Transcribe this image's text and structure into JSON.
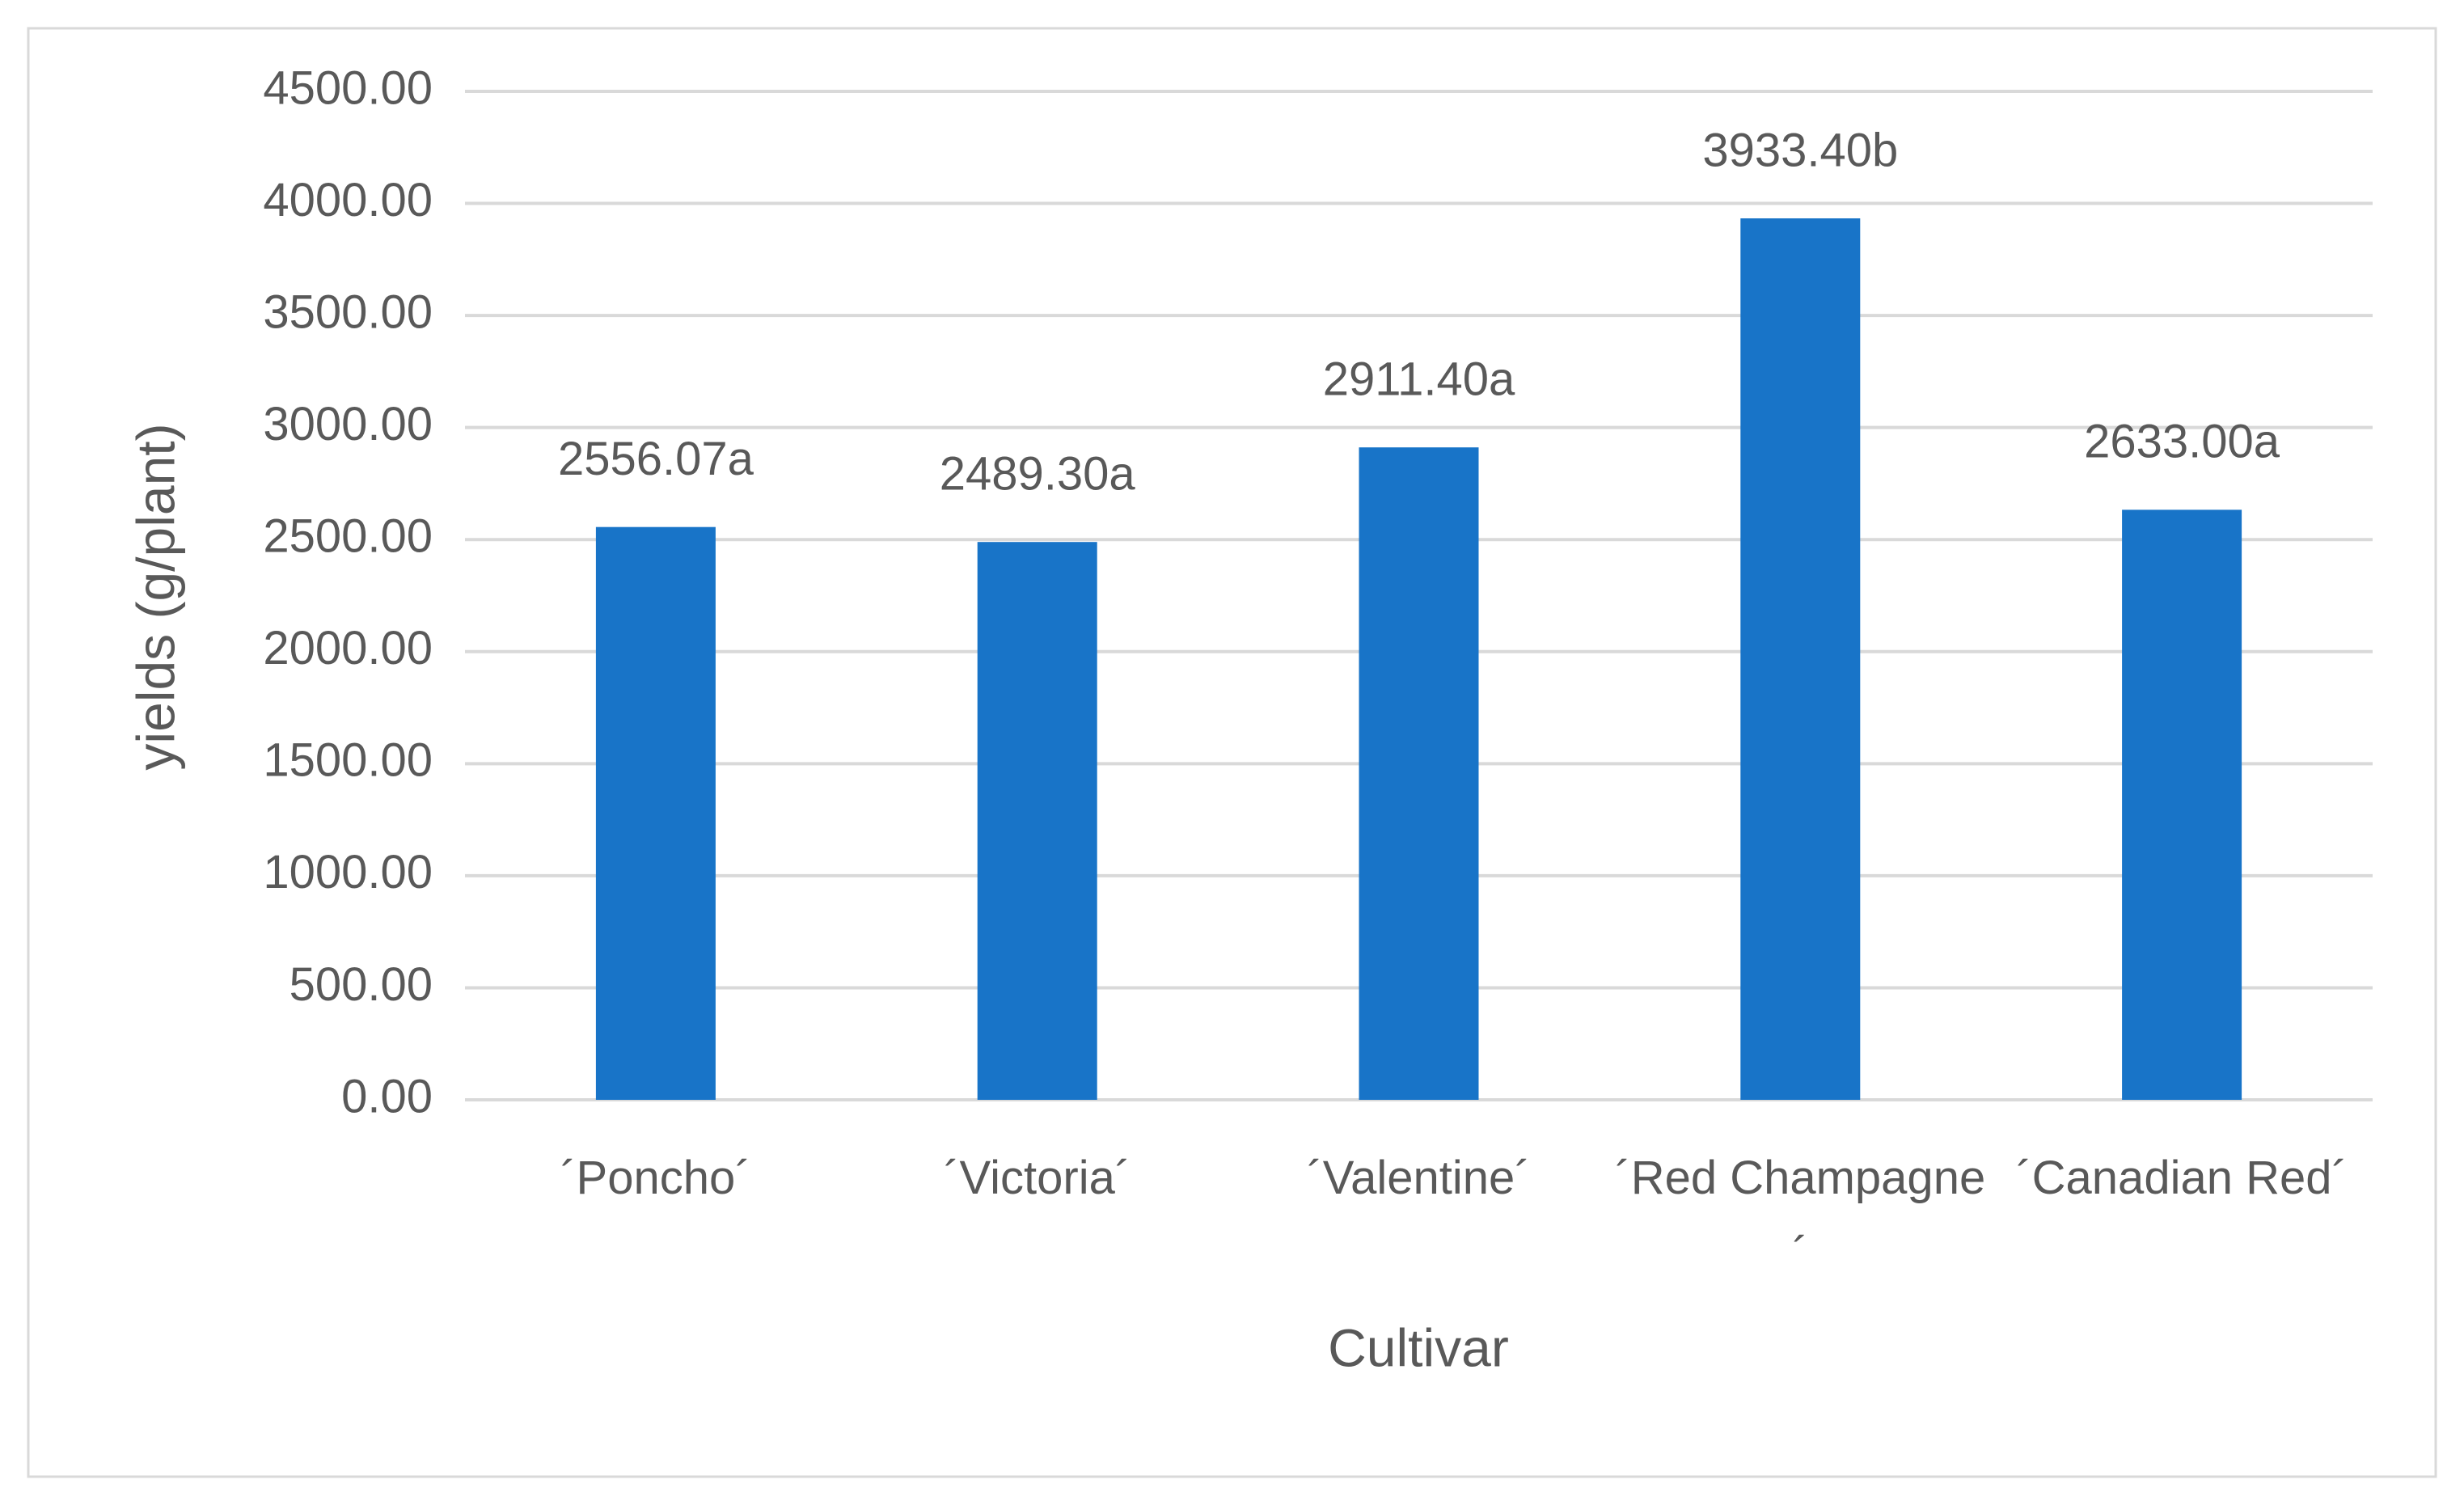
{
  "chart_data": {
    "type": "bar",
    "x_label": "Cultivar",
    "y_label": "yields (g/plant)",
    "categories": [
      "´Poncho´",
      "´Victoria´",
      "´Valentine´",
      "´Red Champagne´",
      "´Canadian Red´"
    ],
    "values": [
      2556.07,
      2489.3,
      2911.4,
      3933.4,
      2633.0
    ],
    "value_labels": [
      "2556.07a",
      "2489.30a",
      "2911.40a",
      "3933.40b",
      "2633.00a"
    ],
    "color": "#1874c8",
    "ylim": [
      0,
      4500
    ],
    "yticks": [
      {
        "value": 0,
        "label": "0.00"
      },
      {
        "value": 500,
        "label": "500.00"
      },
      {
        "value": 1000,
        "label": "1000.00"
      },
      {
        "value": 1500,
        "label": "1500.00"
      },
      {
        "value": 2000,
        "label": "2000.00"
      },
      {
        "value": 2500,
        "label": "2500.00"
      },
      {
        "value": 3000,
        "label": "3000.00"
      },
      {
        "value": 3500,
        "label": "3500.00"
      },
      {
        "value": 4000,
        "label": "4000.00"
      },
      {
        "value": 4500,
        "label": "4500.00"
      }
    ],
    "grid": true
  }
}
